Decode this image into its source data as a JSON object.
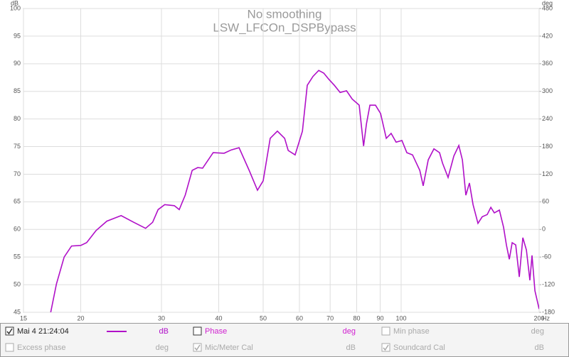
{
  "chart_data": {
    "type": "line",
    "title": "No smoothing",
    "subtitle": "LSW_LFCOn_DSPBypass",
    "y_unit": "dB",
    "y2_unit": "deg",
    "x_unit": "Hz",
    "xscale": "log",
    "grid": true,
    "xlim": [
      15,
      200
    ],
    "xticks": [
      15,
      20,
      30,
      40,
      50,
      60,
      70,
      80,
      90,
      100,
      200
    ],
    "ylim": [
      45,
      100
    ],
    "yticks": [
      45,
      50,
      55,
      60,
      65,
      70,
      75,
      80,
      85,
      90,
      95,
      100
    ],
    "y2lim": [
      -180,
      480
    ],
    "y2ticks": [
      -180,
      -120,
      -60,
      0,
      60,
      120,
      180,
      240,
      300,
      360,
      420,
      480
    ],
    "x": [
      17.2,
      17.7,
      18.4,
      19.1,
      20.0,
      20.6,
      21.6,
      22.8,
      24.5,
      26.1,
      27.7,
      28.7,
      29.5,
      30.5,
      32.0,
      32.8,
      33.8,
      35.0,
      36.0,
      36.9,
      38.9,
      41.1,
      42.6,
      44.3,
      46.6,
      48.6,
      50.0,
      51.8,
      53.7,
      55.7,
      56.7,
      58.7,
      60.9,
      62.4,
      64.2,
      66.1,
      67.8,
      69.5,
      71.5,
      73.6,
      76.0,
      78.2,
      81.0,
      82.8,
      84.0,
      85.5,
      87.9,
      90.2,
      92.8,
      95.1,
      97.5,
      100.4,
      102.9,
      105.9,
      109.8,
      111.7,
      114.6,
      117.9,
      121.3,
      123.1,
      126.6,
      130.3,
      133.6,
      136.0,
      138.4,
      140.9,
      143.5,
      147.1,
      150.3,
      154.1,
      156.9,
      159.7,
      163.8,
      167.3,
      169.7,
      172.2,
      174.7,
      177.8,
      181.0,
      184.3,
      187.6,
      190.9,
      193.0,
      195.8,
      200
    ],
    "series": [
      {
        "name": "Mai 4 21:24:04",
        "unit": "dB",
        "color": "#b010c8",
        "values": [
          45.0,
          50.1,
          55.0,
          57.0,
          57.1,
          57.6,
          59.8,
          61.5,
          62.5,
          61.3,
          60.2,
          61.3,
          63.6,
          64.5,
          64.3,
          63.6,
          66.2,
          70.7,
          71.2,
          71.1,
          73.9,
          73.8,
          74.4,
          74.8,
          70.7,
          67.1,
          68.8,
          76.5,
          77.8,
          76.5,
          74.3,
          73.5,
          77.8,
          86.1,
          87.7,
          88.8,
          88.3,
          87.2,
          86.1,
          84.8,
          85.1,
          83.6,
          82.5,
          75.1,
          79.1,
          82.5,
          82.5,
          81.0,
          76.5,
          77.4,
          75.8,
          76.1,
          73.9,
          73.5,
          70.7,
          67.9,
          72.6,
          74.6,
          73.9,
          72.0,
          69.4,
          73.3,
          75.2,
          72.6,
          66.2,
          68.4,
          64.5,
          61.1,
          62.3,
          62.7,
          64.0,
          63.0,
          63.5,
          60.4,
          57.2,
          54.6,
          57.6,
          57.2,
          51.4,
          58.5,
          56.3,
          50.8,
          55.3,
          48.9,
          45.6
        ]
      }
    ],
    "legend_items": [
      {
        "label": "Phase",
        "unit": "deg",
        "checked": false,
        "enabled": true,
        "color": "#d020d0"
      },
      {
        "label": "Min phase",
        "unit": "deg",
        "checked": false,
        "enabled": false
      },
      {
        "label": "Excess phase",
        "unit": "deg",
        "checked": false,
        "enabled": false
      },
      {
        "label": "Mic/Meter Cal",
        "unit": "dB",
        "checked": true,
        "enabled": false
      },
      {
        "label": "Soundcard Cal",
        "unit": "dB",
        "checked": true,
        "enabled": false
      }
    ]
  }
}
